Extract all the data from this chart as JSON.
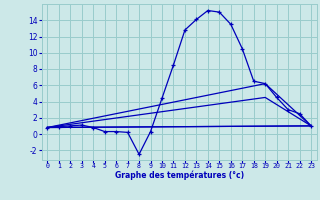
{
  "xlabel": "Graphe des températures (°c)",
  "x_ticks": [
    0,
    1,
    2,
    3,
    4,
    5,
    6,
    7,
    8,
    9,
    10,
    11,
    12,
    13,
    14,
    15,
    16,
    17,
    18,
    19,
    20,
    21,
    22,
    23
  ],
  "y_ticks": [
    -2,
    0,
    2,
    4,
    6,
    8,
    10,
    12,
    14
  ],
  "xlim": [
    -0.5,
    23.5
  ],
  "ylim": [
    -3.2,
    16.0
  ],
  "bg_color": "#cce8e8",
  "line_color": "#0000bb",
  "grid_color": "#99cccc",
  "line1_x": [
    0,
    1,
    2,
    3,
    4,
    5,
    6,
    7,
    8,
    9,
    10,
    11,
    12,
    13,
    14,
    15,
    16,
    17,
    18,
    19,
    20,
    21,
    22,
    23
  ],
  "line1_y": [
    0.8,
    0.9,
    1.0,
    1.1,
    0.8,
    0.3,
    0.3,
    0.2,
    -2.5,
    0.3,
    4.4,
    8.5,
    12.8,
    14.1,
    15.2,
    15.0,
    13.5,
    10.5,
    6.5,
    6.2,
    4.5,
    3.0,
    2.5,
    1.0
  ],
  "line2_x": [
    0,
    23
  ],
  "line2_y": [
    0.8,
    1.0
  ],
  "line3_x": [
    0,
    19,
    23
  ],
  "line3_y": [
    0.8,
    6.2,
    1.0
  ],
  "line4_x": [
    0,
    19,
    23
  ],
  "line4_y": [
    0.8,
    4.5,
    1.0
  ],
  "line5_x": [
    0,
    23
  ],
  "line5_y": [
    0.8,
    1.0
  ]
}
